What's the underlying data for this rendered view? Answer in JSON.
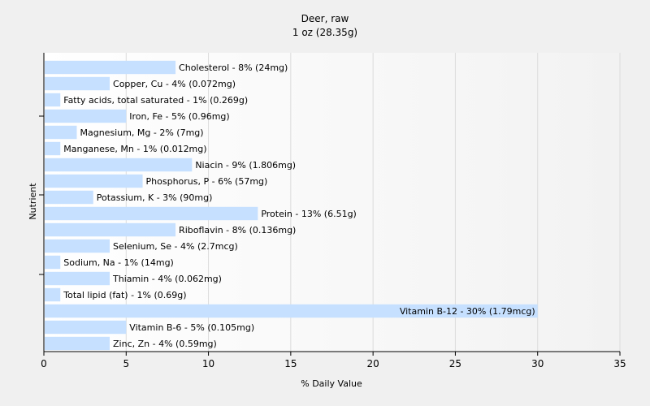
{
  "chart_data": {
    "type": "bar",
    "orientation": "horizontal",
    "title": "Deer, raw",
    "subtitle": "1 oz (28.35g)",
    "xlabel": "% Daily Value",
    "ylabel": "Nutrient",
    "xlim": [
      0,
      35
    ],
    "xticks": [
      0,
      5,
      10,
      15,
      20,
      25,
      30,
      35
    ],
    "grid": true,
    "bar_color": "#c6e0ff",
    "categories": [
      "Cholesterol",
      "Copper, Cu",
      "Fatty acids, total saturated",
      "Iron, Fe",
      "Magnesium, Mg",
      "Manganese, Mn",
      "Niacin",
      "Phosphorus, P",
      "Potassium, K",
      "Protein",
      "Riboflavin",
      "Selenium, Se",
      "Sodium, Na",
      "Thiamin",
      "Total lipid (fat)",
      "Vitamin B-12",
      "Vitamin B-6",
      "Zinc, Zn"
    ],
    "values": [
      8,
      4,
      1,
      5,
      2,
      1,
      9,
      6,
      3,
      13,
      8,
      4,
      1,
      4,
      1,
      30,
      5,
      4
    ],
    "labels": [
      "Cholesterol - 8% (24mg)",
      "Copper, Cu - 4% (0.072mg)",
      "Fatty acids, total saturated - 1% (0.269g)",
      "Iron, Fe - 5% (0.96mg)",
      "Magnesium, Mg - 2% (7mg)",
      "Manganese, Mn - 1% (0.012mg)",
      "Niacin - 9% (1.806mg)",
      "Phosphorus, P - 6% (57mg)",
      "Potassium, K - 3% (90mg)",
      "Protein - 13% (6.51g)",
      "Riboflavin - 8% (0.136mg)",
      "Selenium, Se - 4% (2.7mcg)",
      "Sodium, Na - 1% (14mg)",
      "Thiamin - 4% (0.062mg)",
      "Total lipid (fat) - 1% (0.69g)",
      "Vitamin B-12 - 30% (1.79mcg)",
      "Vitamin B-6 - 5% (0.105mg)",
      "Zinc, Zn - 4% (0.59mg)"
    ]
  }
}
